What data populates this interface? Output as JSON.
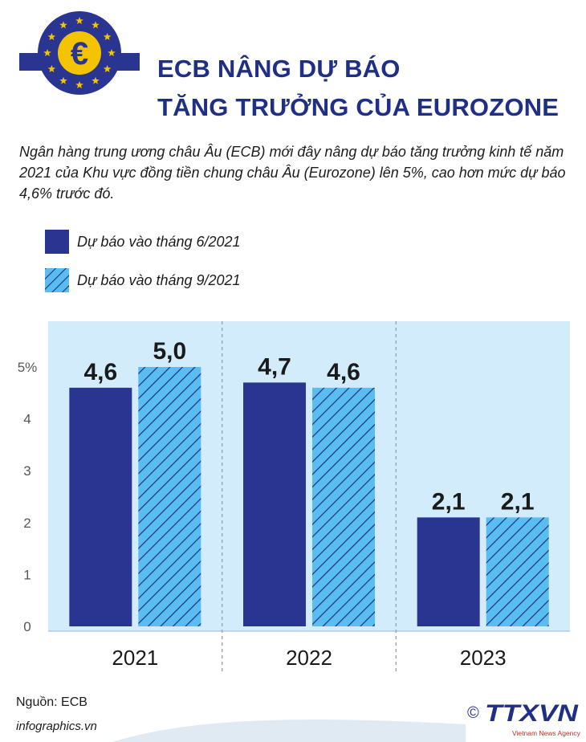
{
  "header": {
    "title_line1": "ECB NÂNG DỰ BÁO",
    "title_line2": "TĂNG TRƯỞNG CỦA EUROZONE"
  },
  "intro": "Ngân hàng trung ương châu Âu (ECB) mới đây nâng dự báo tăng trưởng kinh tế năm 2021 của Khu vực đồng tiền chung châu Âu (Eurozone) lên 5%, cao hơn mức dự báo 4,6% trước đó.",
  "colors": {
    "primary": "#2a3591",
    "hatch_fill": "#59bdf0",
    "hatch_line": "#1f2f86",
    "plot_bg": "#d3ecfb",
    "title": "#1f2f86",
    "brand_red": "#d7262b"
  },
  "chart_data": {
    "type": "bar",
    "categories": [
      "2021",
      "2022",
      "2023"
    ],
    "series": [
      {
        "name": "Dự báo vào tháng 6/2021",
        "values": [
          4.6,
          4.7,
          2.1
        ],
        "labels": [
          "4,6",
          "4,7",
          "2,1"
        ],
        "style": "solid"
      },
      {
        "name": "Dự báo vào tháng 9/2021",
        "values": [
          5.0,
          4.6,
          2.1
        ],
        "labels": [
          "5,0",
          "4,6",
          "2,1"
        ],
        "style": "hatched"
      }
    ],
    "yticks": [
      "0",
      "1",
      "2",
      "3",
      "4",
      "5%"
    ],
    "ylim": [
      0,
      5.5
    ],
    "grid": false,
    "legend_position": "top-left"
  },
  "footer": {
    "source": "Nguồn: ECB",
    "site": "infographics.vn",
    "copyright_symbol": "©",
    "brand": "TTXVN",
    "brand_sub": "Vietnam News Agency"
  },
  "icons": {
    "logo": "euro-stars-icon"
  }
}
